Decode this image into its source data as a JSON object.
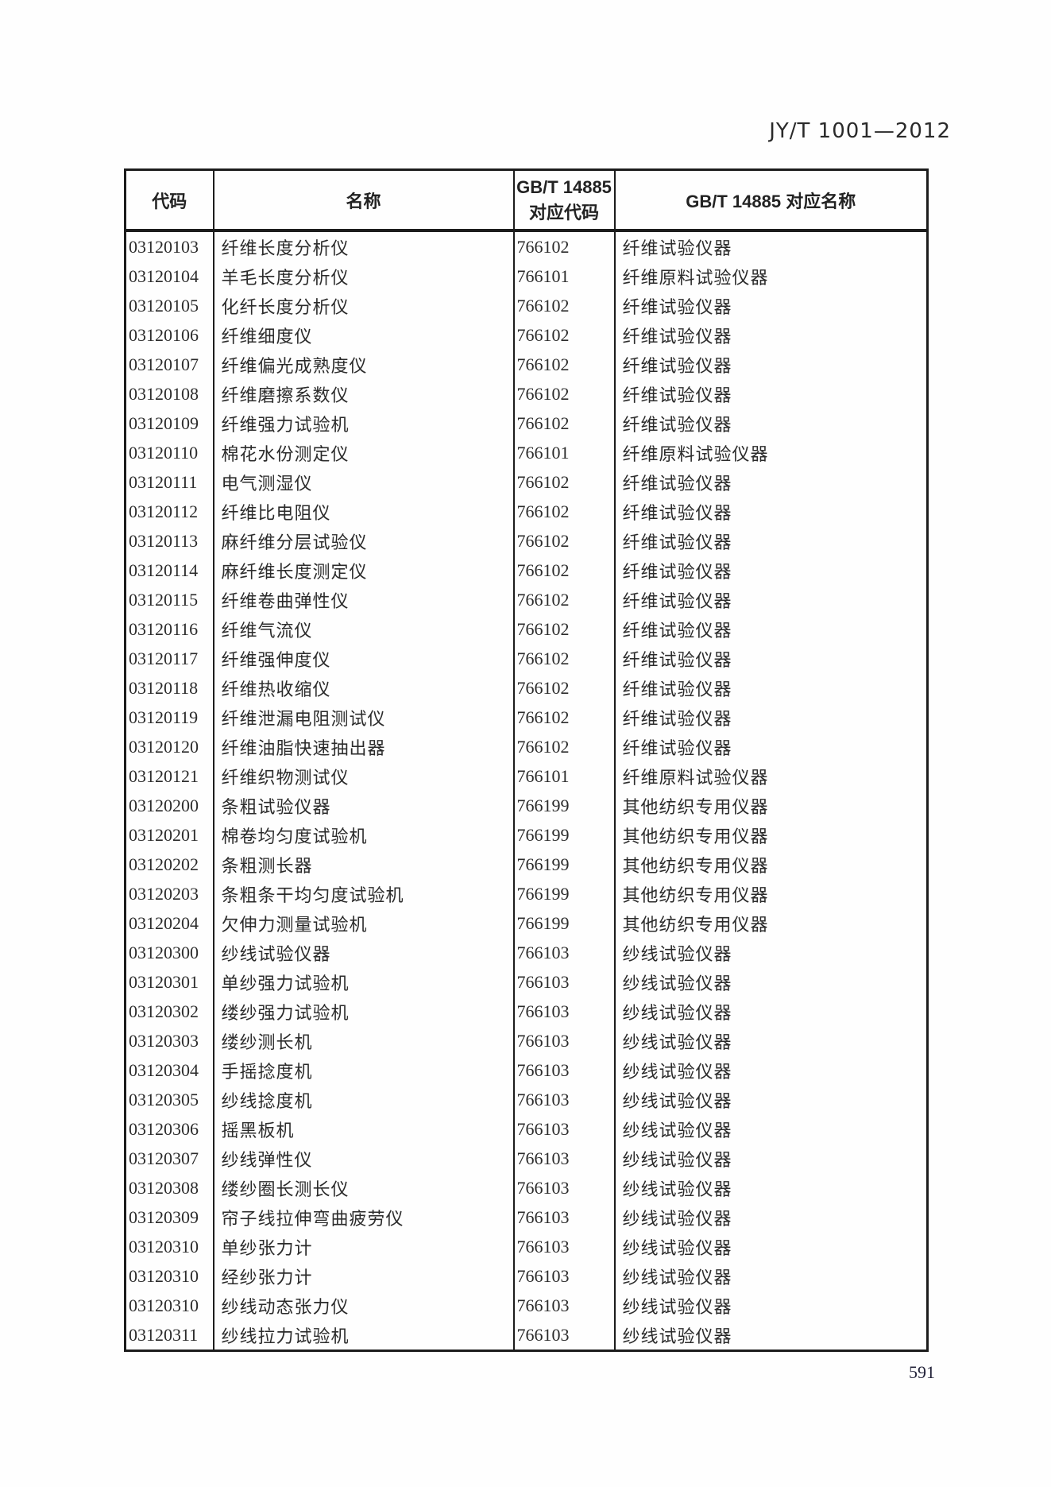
{
  "page": {
    "doc_number": "JY/T 1001—2012",
    "page_number": "591"
  },
  "table": {
    "headers": {
      "code": "代码",
      "name": "名称",
      "gbt_code_line1": "GB/T 14885",
      "gbt_code_line2": "对应代码",
      "gbt_name": "GB/T 14885 对应名称"
    },
    "rows": [
      {
        "code": "03120103",
        "name": "纤维长度分析仪",
        "gbt_code": "766102",
        "gbt_name": "纤维试验仪器"
      },
      {
        "code": "03120104",
        "name": "羊毛长度分析仪",
        "gbt_code": "766101",
        "gbt_name": "纤维原料试验仪器"
      },
      {
        "code": "03120105",
        "name": "化纤长度分析仪",
        "gbt_code": "766102",
        "gbt_name": "纤维试验仪器"
      },
      {
        "code": "03120106",
        "name": "纤维细度仪",
        "gbt_code": "766102",
        "gbt_name": "纤维试验仪器"
      },
      {
        "code": "03120107",
        "name": "纤维偏光成熟度仪",
        "gbt_code": "766102",
        "gbt_name": "纤维试验仪器"
      },
      {
        "code": "03120108",
        "name": "纤维磨擦系数仪",
        "gbt_code": "766102",
        "gbt_name": "纤维试验仪器"
      },
      {
        "code": "03120109",
        "name": "纤维强力试验机",
        "gbt_code": "766102",
        "gbt_name": "纤维试验仪器"
      },
      {
        "code": "03120110",
        "name": "棉花水份测定仪",
        "gbt_code": "766101",
        "gbt_name": "纤维原料试验仪器"
      },
      {
        "code": "03120111",
        "name": "电气测湿仪",
        "gbt_code": "766102",
        "gbt_name": "纤维试验仪器"
      },
      {
        "code": "03120112",
        "name": "纤维比电阻仪",
        "gbt_code": "766102",
        "gbt_name": "纤维试验仪器"
      },
      {
        "code": "03120113",
        "name": "麻纤维分层试验仪",
        "gbt_code": "766102",
        "gbt_name": "纤维试验仪器"
      },
      {
        "code": "03120114",
        "name": "麻纤维长度测定仪",
        "gbt_code": "766102",
        "gbt_name": "纤维试验仪器"
      },
      {
        "code": "03120115",
        "name": "纤维卷曲弹性仪",
        "gbt_code": "766102",
        "gbt_name": "纤维试验仪器"
      },
      {
        "code": "03120116",
        "name": "纤维气流仪",
        "gbt_code": "766102",
        "gbt_name": "纤维试验仪器"
      },
      {
        "code": "03120117",
        "name": "纤维强伸度仪",
        "gbt_code": "766102",
        "gbt_name": "纤维试验仪器"
      },
      {
        "code": "03120118",
        "name": "纤维热收缩仪",
        "gbt_code": "766102",
        "gbt_name": "纤维试验仪器"
      },
      {
        "code": "03120119",
        "name": "纤维泄漏电阻测试仪",
        "gbt_code": "766102",
        "gbt_name": "纤维试验仪器"
      },
      {
        "code": "03120120",
        "name": "纤维油脂快速抽出器",
        "gbt_code": "766102",
        "gbt_name": "纤维试验仪器"
      },
      {
        "code": "03120121",
        "name": "纤维织物测试仪",
        "gbt_code": "766101",
        "gbt_name": "纤维原料试验仪器"
      },
      {
        "code": "03120200",
        "name": "条粗试验仪器",
        "gbt_code": "766199",
        "gbt_name": "其他纺织专用仪器"
      },
      {
        "code": "03120201",
        "name": "棉卷均匀度试验机",
        "gbt_code": "766199",
        "gbt_name": "其他纺织专用仪器"
      },
      {
        "code": "03120202",
        "name": "条粗测长器",
        "gbt_code": "766199",
        "gbt_name": "其他纺织专用仪器"
      },
      {
        "code": "03120203",
        "name": "条粗条干均匀度试验机",
        "gbt_code": "766199",
        "gbt_name": "其他纺织专用仪器"
      },
      {
        "code": "03120204",
        "name": "欠伸力测量试验机",
        "gbt_code": "766199",
        "gbt_name": "其他纺织专用仪器"
      },
      {
        "code": "03120300",
        "name": "纱线试验仪器",
        "gbt_code": "766103",
        "gbt_name": "纱线试验仪器"
      },
      {
        "code": "03120301",
        "name": "单纱强力试验机",
        "gbt_code": "766103",
        "gbt_name": "纱线试验仪器"
      },
      {
        "code": "03120302",
        "name": "缕纱强力试验机",
        "gbt_code": "766103",
        "gbt_name": "纱线试验仪器"
      },
      {
        "code": "03120303",
        "name": "缕纱测长机",
        "gbt_code": "766103",
        "gbt_name": "纱线试验仪器"
      },
      {
        "code": "03120304",
        "name": "手摇捻度机",
        "gbt_code": "766103",
        "gbt_name": "纱线试验仪器"
      },
      {
        "code": "03120305",
        "name": "纱线捻度机",
        "gbt_code": "766103",
        "gbt_name": "纱线试验仪器"
      },
      {
        "code": "03120306",
        "name": "摇黑板机",
        "gbt_code": "766103",
        "gbt_name": "纱线试验仪器"
      },
      {
        "code": "03120307",
        "name": "纱线弹性仪",
        "gbt_code": "766103",
        "gbt_name": "纱线试验仪器"
      },
      {
        "code": "03120308",
        "name": "缕纱圈长测长仪",
        "gbt_code": "766103",
        "gbt_name": "纱线试验仪器"
      },
      {
        "code": "03120309",
        "name": "帘子线拉伸弯曲疲劳仪",
        "gbt_code": "766103",
        "gbt_name": "纱线试验仪器"
      },
      {
        "code": "03120310",
        "name": "单纱张力计",
        "gbt_code": "766103",
        "gbt_name": "纱线试验仪器"
      },
      {
        "code": "03120310",
        "name": "经纱张力计",
        "gbt_code": "766103",
        "gbt_name": "纱线试验仪器"
      },
      {
        "code": "03120310",
        "name": "纱线动态张力仪",
        "gbt_code": "766103",
        "gbt_name": "纱线试验仪器"
      },
      {
        "code": "03120311",
        "name": "纱线拉力试验机",
        "gbt_code": "766103",
        "gbt_name": "纱线试验仪器"
      }
    ]
  }
}
